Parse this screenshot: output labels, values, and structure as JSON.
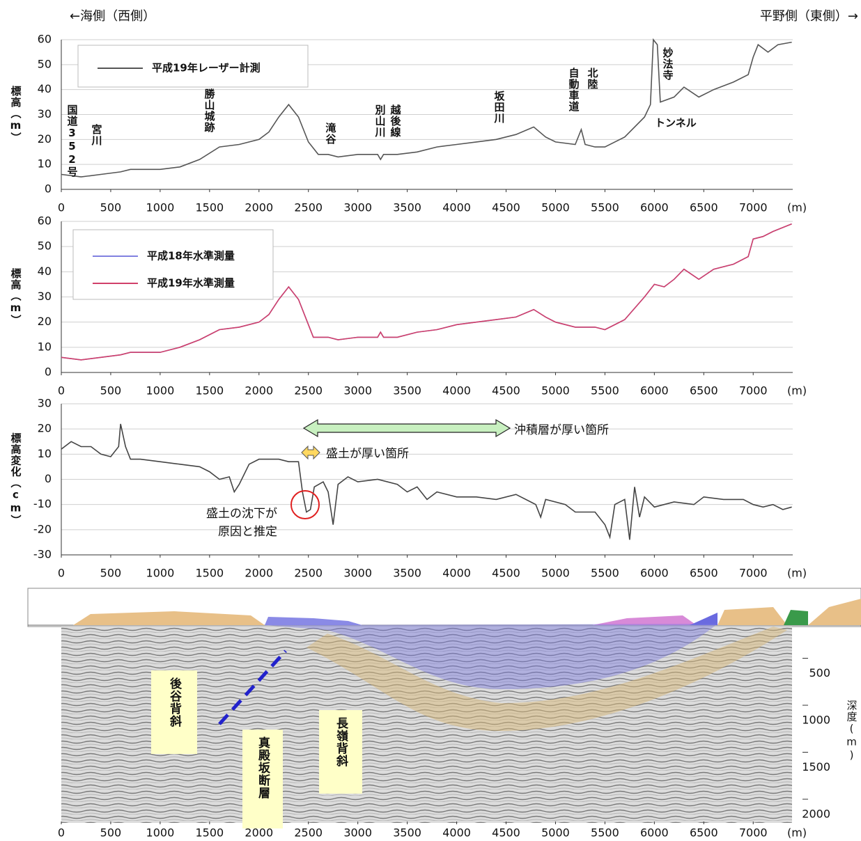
{
  "header": {
    "left": "←海側（西側）",
    "right": "平野側（東側）→"
  },
  "chart_data": [
    {
      "type": "line",
      "y_label": "標高（m）",
      "x_unit": "(m)",
      "xlim": [
        0,
        7400
      ],
      "xticks": [
        0,
        500,
        1000,
        1500,
        2000,
        2500,
        3000,
        3500,
        4000,
        4500,
        5000,
        5500,
        6000,
        6500,
        7000
      ],
      "ylim": [
        0,
        60
      ],
      "yticks": [
        0,
        10,
        20,
        30,
        40,
        50,
        60
      ],
      "grid": true,
      "x": [
        0,
        200,
        400,
        600,
        700,
        1000,
        1200,
        1400,
        1600,
        1800,
        2000,
        2100,
        2200,
        2300,
        2400,
        2500,
        2600,
        2700,
        2800,
        3000,
        3200,
        3230,
        3260,
        3400,
        3600,
        3800,
        4000,
        4200,
        4400,
        4600,
        4780,
        4900,
        5000,
        5200,
        5260,
        5300,
        5400,
        5500,
        5700,
        5900,
        5960,
        5990,
        6030,
        6060,
        6200,
        6300,
        6450,
        6600,
        6800,
        6950,
        7000,
        7050,
        7150,
        7250,
        7390
      ],
      "series": [
        {
          "name": "平成19年レーザー計測",
          "color": "#555555",
          "values": [
            6,
            5,
            6,
            7,
            8,
            8,
            9,
            12,
            17,
            18,
            20,
            23,
            29,
            34,
            29,
            19,
            14,
            14,
            13,
            14,
            14,
            12,
            14,
            14,
            15,
            17,
            18,
            19,
            20,
            22,
            25,
            21,
            19,
            18,
            24,
            18,
            17,
            17,
            21,
            29,
            34,
            60,
            58,
            35,
            37,
            41,
            37,
            40,
            43,
            46,
            53,
            58,
            55,
            58,
            59
          ]
        }
      ],
      "annotations": [
        "国道352号",
        "宮川",
        "勝山城跡",
        "滝谷",
        "別山川",
        "越後線",
        "坂田川",
        "自動車道",
        "北陸",
        "妙法寺",
        "トンネル"
      ]
    },
    {
      "type": "line",
      "y_label": "標高（m）",
      "x_unit": "(m)",
      "xlim": [
        0,
        7400
      ],
      "xticks": [
        0,
        500,
        1000,
        1500,
        2000,
        2500,
        3000,
        3500,
        4000,
        4500,
        5000,
        5500,
        6000,
        6500,
        7000
      ],
      "ylim": [
        0,
        60
      ],
      "yticks": [
        0,
        10,
        20,
        30,
        40,
        50,
        60
      ],
      "grid": true,
      "x": [
        0,
        200,
        400,
        600,
        700,
        1000,
        1200,
        1400,
        1600,
        1800,
        2000,
        2100,
        2200,
        2300,
        2400,
        2500,
        2550,
        2700,
        2800,
        3000,
        3200,
        3230,
        3260,
        3400,
        3600,
        3800,
        4000,
        4200,
        4400,
        4600,
        4780,
        4900,
        5000,
        5200,
        5400,
        5500,
        5700,
        5900,
        6000,
        6100,
        6200,
        6300,
        6450,
        6600,
        6800,
        6950,
        7000,
        7100,
        7200,
        7390
      ],
      "series": [
        {
          "name": "平成18年水準測量",
          "color": "#8080e0",
          "values": [
            6,
            5,
            6,
            7,
            8,
            8,
            10,
            13,
            17,
            18,
            20,
            23,
            29,
            34,
            29,
            19,
            14,
            14,
            13,
            14,
            14,
            16,
            14,
            14,
            16,
            17,
            19,
            20,
            21,
            22,
            25,
            22,
            20,
            18,
            18,
            17,
            21,
            30,
            35,
            34,
            37,
            41,
            37,
            41,
            43,
            46,
            53,
            54,
            56,
            59
          ]
        },
        {
          "name": "平成19年水準測量",
          "color": "#d0406a",
          "values": [
            6,
            5,
            6,
            7,
            8,
            8,
            10,
            13,
            17,
            18,
            20,
            23,
            29,
            34,
            29,
            19,
            14,
            14,
            13,
            14,
            14,
            16,
            14,
            14,
            16,
            17,
            19,
            20,
            21,
            22,
            25,
            22,
            20,
            18,
            18,
            17,
            21,
            30,
            35,
            34,
            37,
            41,
            37,
            41,
            43,
            46,
            53,
            54,
            56,
            59
          ]
        }
      ]
    },
    {
      "type": "line",
      "y_label": "標高変化（cm）",
      "x_unit": "(m)",
      "xlim": [
        0,
        7400
      ],
      "xticks": [
        0,
        500,
        1000,
        1500,
        2000,
        2500,
        3000,
        3500,
        4000,
        4500,
        5000,
        5500,
        6000,
        6500,
        7000
      ],
      "ylim": [
        -30,
        30
      ],
      "yticks": [
        -30,
        -20,
        -10,
        0,
        10,
        20,
        30
      ],
      "grid": true,
      "color": "#444444",
      "x": [
        0,
        100,
        200,
        300,
        400,
        500,
        580,
        600,
        650,
        700,
        800,
        1000,
        1200,
        1400,
        1500,
        1600,
        1700,
        1750,
        1800,
        1900,
        2000,
        2200,
        2300,
        2400,
        2440,
        2480,
        2520,
        2560,
        2650,
        2700,
        2750,
        2800,
        2900,
        3000,
        3200,
        3400,
        3500,
        3600,
        3700,
        3800,
        4000,
        4200,
        4400,
        4600,
        4800,
        4850,
        4900,
        5100,
        5200,
        5400,
        5500,
        5550,
        5600,
        5700,
        5750,
        5800,
        5850,
        5900,
        6000,
        6200,
        6400,
        6500,
        6700,
        6900,
        7000,
        7100,
        7200,
        7300,
        7390
      ],
      "values": [
        12,
        15,
        13,
        13,
        10,
        9,
        13,
        22,
        13,
        8,
        8,
        7,
        6,
        5,
        3,
        0,
        1,
        -5,
        -2,
        6,
        8,
        8,
        7,
        7,
        -5,
        -13,
        -12,
        -3,
        -1,
        -5,
        -18,
        -2,
        1,
        -1,
        0,
        -2,
        -5,
        -3,
        -8,
        -5,
        -7,
        -7,
        -8,
        -6,
        -10,
        -15,
        -8,
        -10,
        -13,
        -13,
        -18,
        -23,
        -10,
        -8,
        -24,
        -3,
        -15,
        -7,
        -11,
        -9,
        -10,
        -7,
        -8,
        -8,
        -10,
        -11,
        -10,
        -12,
        -11
      ],
      "annotations": [
        "沖積層が厚い箇所",
        "盛土が厚い箇所",
        "盛土の沈下が",
        "原因と推定"
      ]
    },
    {
      "type": "section",
      "y_label": "深度(m)",
      "x_unit": "(m)",
      "xlim": [
        0,
        7400
      ],
      "xticks": [
        0,
        500,
        1000,
        1500,
        2000,
        2500,
        3000,
        3500,
        4000,
        4500,
        5000,
        5500,
        6000,
        6500,
        7000
      ],
      "ylim": [
        0,
        2000
      ],
      "yticks": [
        500,
        1000,
        1500,
        2000
      ],
      "annotations": [
        "後谷背斜",
        "真殿坂断層",
        "長嶺背斜"
      ]
    }
  ]
}
